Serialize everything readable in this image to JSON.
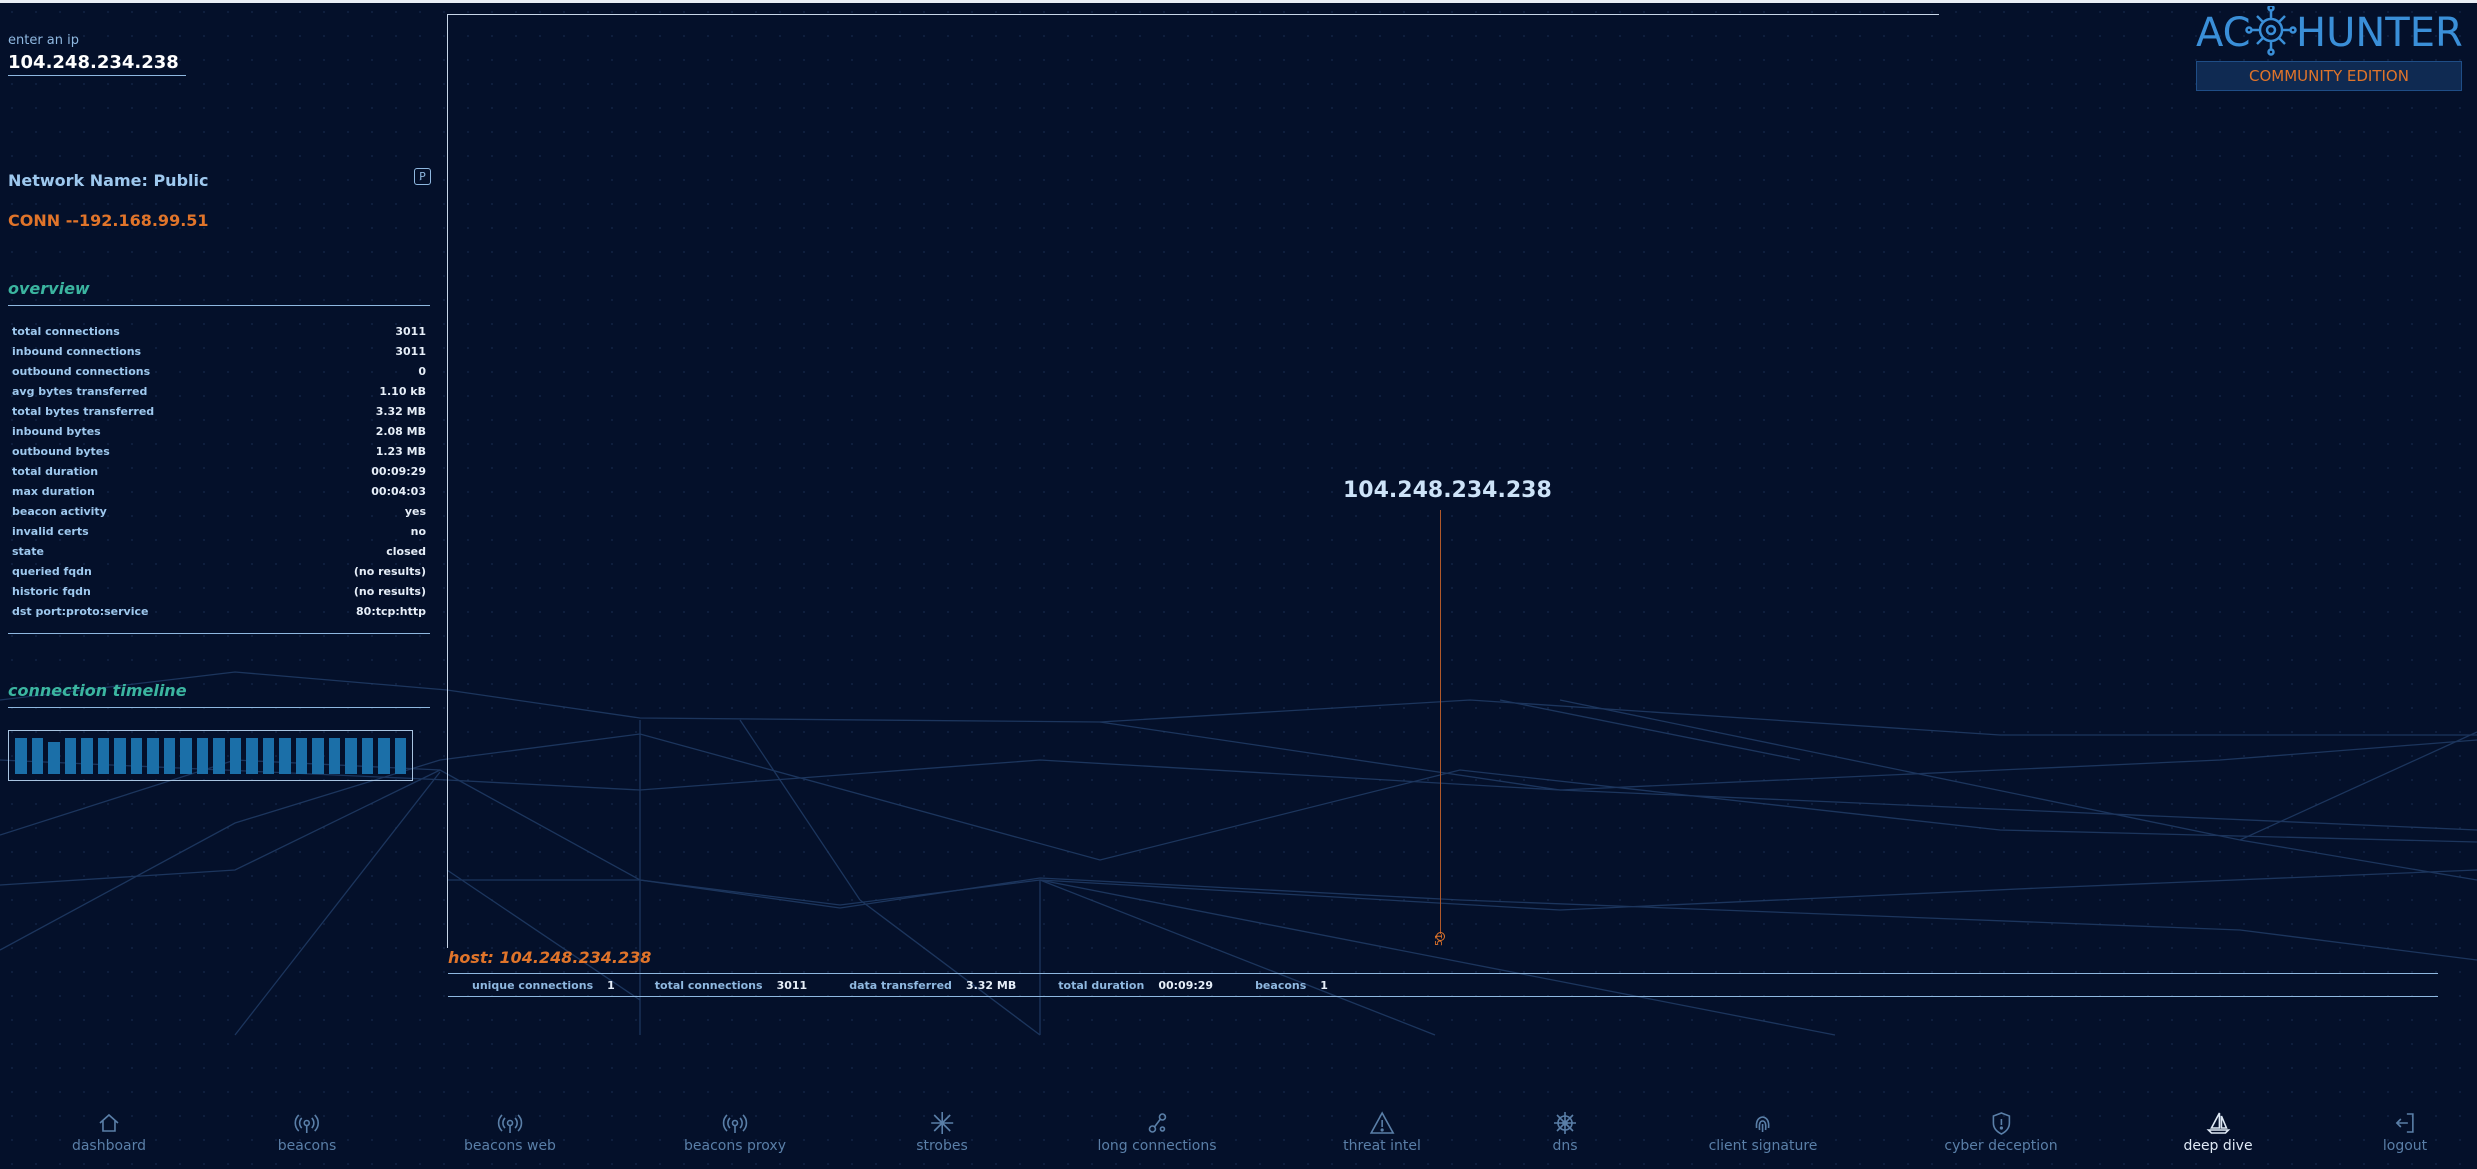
{
  "search": {
    "label": "enter an ip",
    "value": "104.248.234.238"
  },
  "network": {
    "name": "Network Name: Public",
    "badge": "P"
  },
  "conn_label": "CONN --192.168.99.51",
  "overview": {
    "title": "overview",
    "rows": [
      {
        "key": "total connections",
        "value": "3011"
      },
      {
        "key": "inbound connections",
        "value": "3011"
      },
      {
        "key": "outbound connections",
        "value": "0"
      },
      {
        "key": "avg bytes transferred",
        "value": "1.10 kB"
      },
      {
        "key": "total bytes transferred",
        "value": "3.32 MB"
      },
      {
        "key": "inbound bytes",
        "value": "2.08 MB"
      },
      {
        "key": "outbound bytes",
        "value": "1.23 MB"
      },
      {
        "key": "total duration",
        "value": "00:09:29"
      },
      {
        "key": "max duration",
        "value": "00:04:03"
      },
      {
        "key": "beacon activity",
        "value": "yes"
      },
      {
        "key": "invalid certs",
        "value": "no"
      },
      {
        "key": "state",
        "value": "closed"
      },
      {
        "key": "queried fqdn",
        "value": "(no results)"
      },
      {
        "key": "historic fqdn",
        "value": "(no results)"
      },
      {
        "key": "dst port:proto:service",
        "value": "80:tcp:http"
      }
    ]
  },
  "timeline": {
    "title": "connection timeline",
    "bar_count": 24
  },
  "graph": {
    "node_label": "104.248.234.238",
    "node_count": "51",
    "host_label": "host: 104.248.234.238",
    "summary": [
      {
        "key": "unique connections",
        "value": "1"
      },
      {
        "key": "total connections",
        "value": "3011"
      },
      {
        "key": "data transferred",
        "value": "3.32 MB"
      },
      {
        "key": "total duration",
        "value": "00:09:29"
      },
      {
        "key": "beacons",
        "value": "1"
      }
    ]
  },
  "logo": {
    "text_left": "AC",
    "text_right": "HUNTER",
    "edition": "COMMUNITY EDITION"
  },
  "nav": [
    {
      "label": "dashboard",
      "icon": "home-icon"
    },
    {
      "label": "beacons",
      "icon": "broadcast-icon"
    },
    {
      "label": "beacons web",
      "icon": "broadcast-web-icon"
    },
    {
      "label": "beacons proxy",
      "icon": "broadcast-proxy-icon"
    },
    {
      "label": "strobes",
      "icon": "strobe-icon"
    },
    {
      "label": "long connections",
      "icon": "nodes-icon"
    },
    {
      "label": "threat intel",
      "icon": "warning-icon"
    },
    {
      "label": "dns",
      "icon": "dns-wheel-icon"
    },
    {
      "label": "client signature",
      "icon": "fingerprint-icon"
    },
    {
      "label": "cyber deception",
      "icon": "shield-icon"
    },
    {
      "label": "deep dive",
      "icon": "sailboat-icon",
      "active": true
    },
    {
      "label": "logout",
      "icon": "logout-icon"
    }
  ],
  "colors": {
    "background": "#04102a",
    "accent_orange": "#e0742a",
    "accent_teal": "#3bb5a0",
    "text_blue": "#8fb8e0"
  }
}
